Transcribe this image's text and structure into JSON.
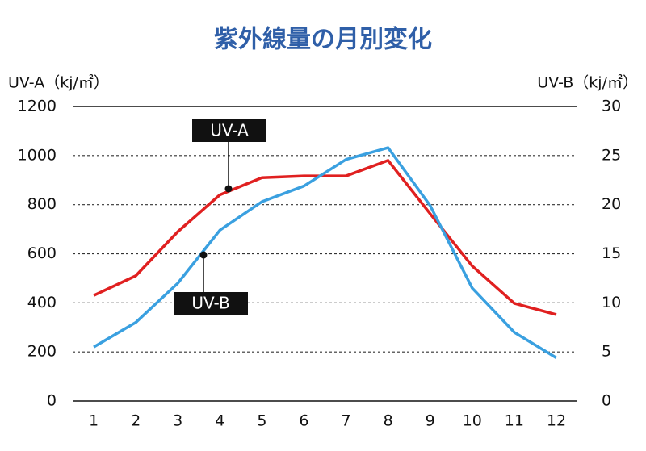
{
  "chart_data": {
    "type": "line",
    "title": "紫外線量の月別変化",
    "y_label": "UV-A（kj/㎡）",
    "y2_label": "UV-B（kj/㎡）",
    "categories": [
      "1",
      "2",
      "3",
      "4",
      "5",
      "6",
      "7",
      "8",
      "9",
      "10",
      "11",
      "12"
    ],
    "series": [
      {
        "name": "UV-A",
        "color": "#e02020",
        "values": [
          430,
          510,
          690,
          840,
          910,
          917,
          917,
          980,
          763,
          550,
          398,
          352
        ]
      },
      {
        "name": "UV-B",
        "color": "#3aa0e0",
        "axis": "y2",
        "values": [
          5.5,
          8,
          12,
          17.4,
          20.3,
          21.9,
          24.6,
          25.8,
          19.9,
          11.5,
          7,
          4.4
        ]
      }
    ],
    "ylim": [
      0,
      1200
    ],
    "yticks": [
      0,
      200,
      400,
      600,
      800,
      1000,
      1200
    ],
    "y2lim": [
      0,
      30
    ],
    "y2ticks": [
      0,
      5,
      10,
      15,
      20,
      25,
      30
    ],
    "grid": true
  }
}
